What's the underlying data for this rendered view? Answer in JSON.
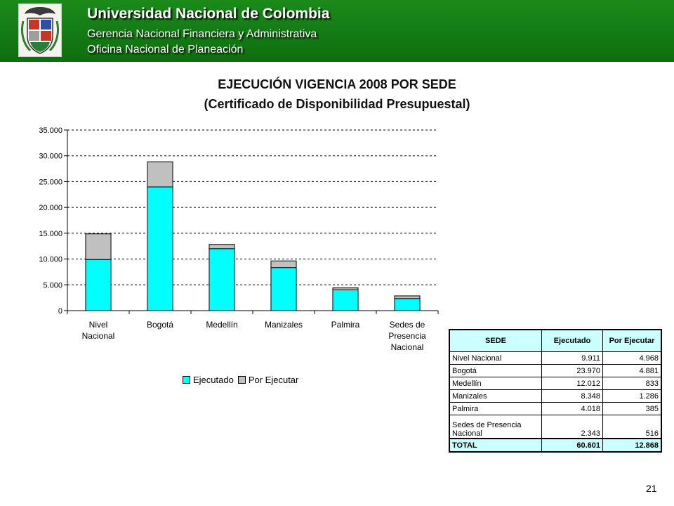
{
  "header": {
    "title": "Universidad Nacional de Colombia",
    "subtitle1": "Gerencia Nacional Financiera y Administrativa",
    "subtitle2": "Oficina Nacional de Planeación",
    "logo": "university-coat-of-arms",
    "bg_color": "#138013"
  },
  "slide": {
    "title_line1": "EJECUCIÓN VIGENCIA 2008 POR SEDE",
    "title_line2": "(Certificado de Disponibilidad Presupuestal)",
    "page_number": "21"
  },
  "chart_data": {
    "type": "bar",
    "stacked": true,
    "categories": [
      "Nivel Nacional",
      "Bogotá",
      "Medellín",
      "Manizales",
      "Palmira",
      "Sedes de Presencia Nacional"
    ],
    "series": [
      {
        "name": "Ejecutado",
        "color": "#00ffff",
        "values": [
          9911,
          23970,
          12012,
          8348,
          4018,
          2343
        ]
      },
      {
        "name": "Por Ejecutar",
        "color": "#c0c0c0",
        "values": [
          4968,
          4881,
          833,
          1286,
          385,
          516
        ]
      }
    ],
    "ylim": [
      0,
      35000
    ],
    "yticks": [
      "0",
      "5.000",
      "10.000",
      "15.000",
      "20.000",
      "25.000",
      "30.000",
      "35.000"
    ],
    "grid": true,
    "legend_position": "bottom"
  },
  "table": {
    "headers": [
      "SEDE",
      "Ejecutado",
      "Por Ejecutar"
    ],
    "rows": [
      {
        "sede": "Nivel Nacional",
        "ejecutado": "9.911",
        "por_ejecutar": "4.968"
      },
      {
        "sede": "Bogotá",
        "ejecutado": "23.970",
        "por_ejecutar": "4.881"
      },
      {
        "sede": "Medellín",
        "ejecutado": "12.012",
        "por_ejecutar": "833"
      },
      {
        "sede": "Manizales",
        "ejecutado": "8.348",
        "por_ejecutar": "1.286"
      },
      {
        "sede": "Palmira",
        "ejecutado": "4.018",
        "por_ejecutar": "385"
      },
      {
        "sede": "Sedes de Presencia Nacional",
        "ejecutado": "2.343",
        "por_ejecutar": "516"
      }
    ],
    "total": {
      "label": "TOTAL",
      "ejecutado": "60.601",
      "por_ejecutar": "12.868"
    }
  }
}
